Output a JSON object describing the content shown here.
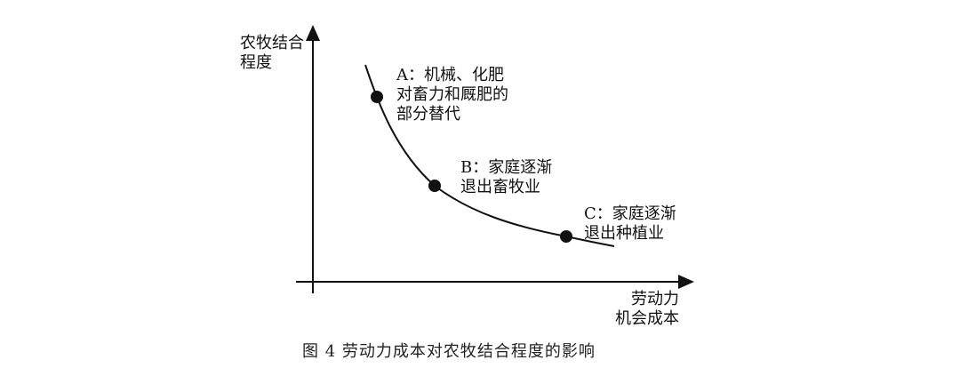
{
  "figure": {
    "y_axis_label": [
      "农牧结合",
      "程度"
    ],
    "x_axis_label": [
      "劳动力",
      "机会成本"
    ],
    "points": [
      {
        "id": "A",
        "lines": [
          "A：机械、化肥",
          "对畜力和厩肥的",
          "部分替代"
        ]
      },
      {
        "id": "B",
        "lines": [
          "B：家庭逐渐",
          "退出畜牧业"
        ]
      },
      {
        "id": "C",
        "lines": [
          "C：家庭逐渐",
          "退出种植业"
        ]
      }
    ],
    "caption": "图 4   劳动力成本对农牧结合程度的影响",
    "colors": {
      "ink": "#111111",
      "background": "#ffffff"
    }
  }
}
